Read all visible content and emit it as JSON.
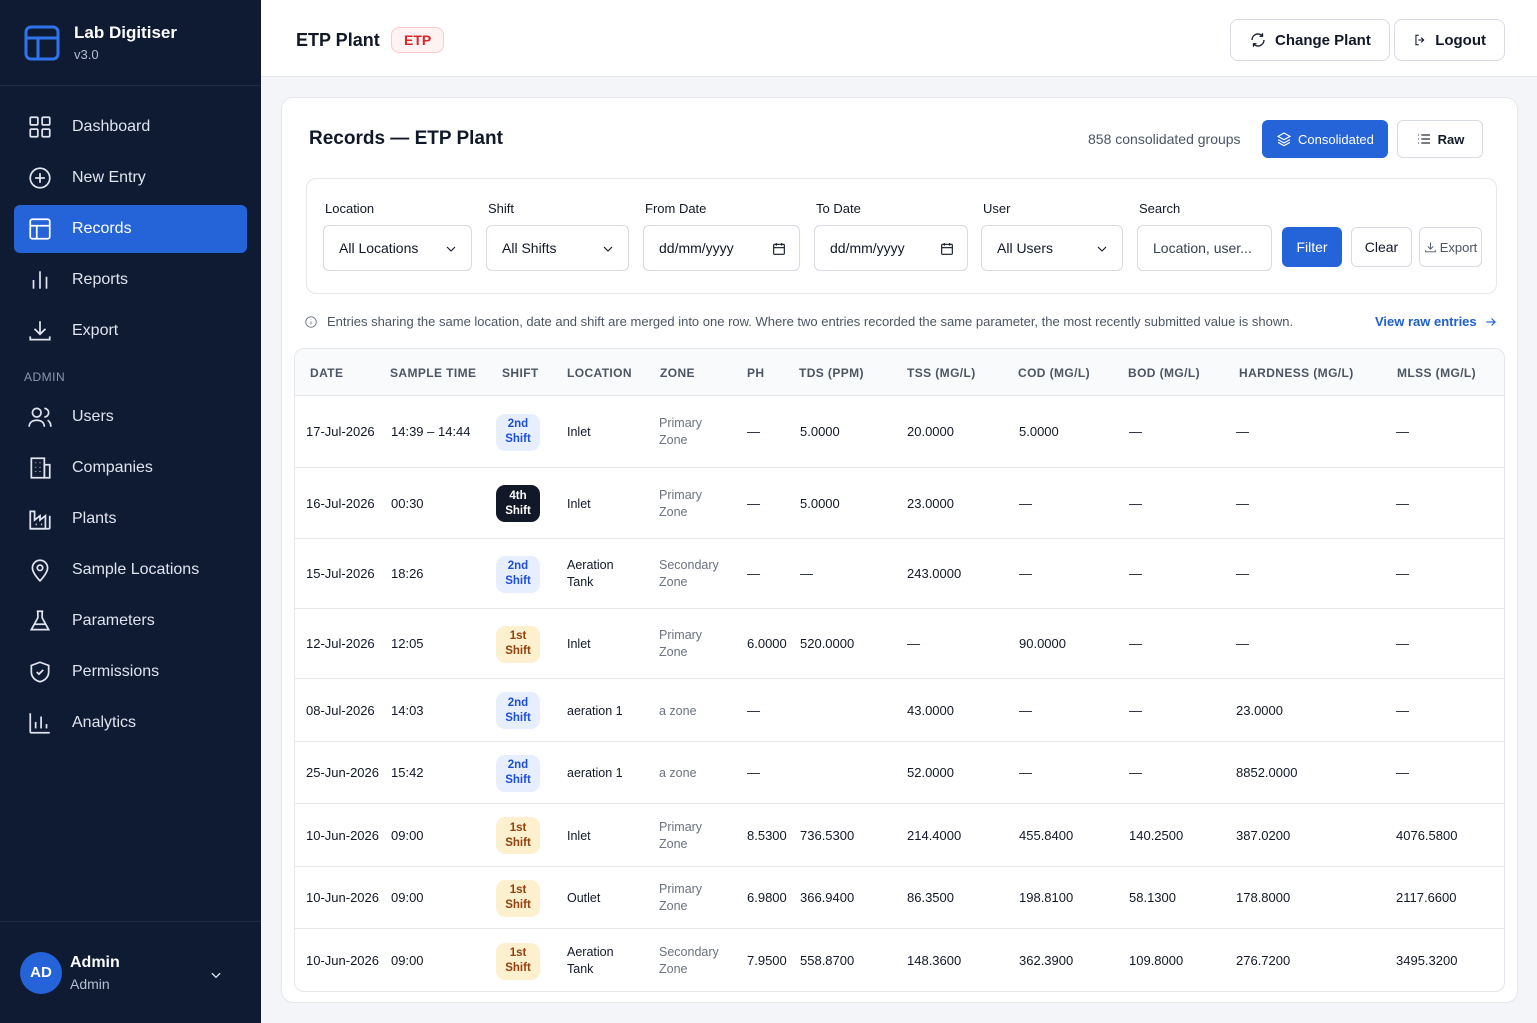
{
  "app": {
    "name": "Lab Digitiser",
    "version": "v3.0"
  },
  "nav": {
    "items": [
      {
        "label": "Dashboard",
        "icon": "dashboard-icon"
      },
      {
        "label": "New Entry",
        "icon": "plus-circle-icon"
      },
      {
        "label": "Records",
        "icon": "table-icon",
        "active": true
      },
      {
        "label": "Reports",
        "icon": "bar-chart-icon"
      },
      {
        "label": "Export",
        "icon": "download-icon"
      }
    ],
    "admin_label": "ADMIN",
    "admin_items": [
      {
        "label": "Users",
        "icon": "users-icon"
      },
      {
        "label": "Companies",
        "icon": "building-icon"
      },
      {
        "label": "Plants",
        "icon": "factory-icon"
      },
      {
        "label": "Sample Locations",
        "icon": "map-pin-icon"
      },
      {
        "label": "Parameters",
        "icon": "flask-icon"
      },
      {
        "label": "Permissions",
        "icon": "shield-icon"
      },
      {
        "label": "Analytics",
        "icon": "analytics-icon"
      }
    ]
  },
  "user": {
    "initials": "AD",
    "name": "Admin",
    "role": "Admin"
  },
  "header": {
    "title": "ETP Plant",
    "badge": "ETP",
    "change_plant": "Change Plant",
    "logout": "Logout"
  },
  "records": {
    "title": "Records — ETP Plant",
    "groups_count": "858 consolidated groups",
    "consolidated_label": "Consolidated",
    "raw_label": "Raw"
  },
  "filters": {
    "location": {
      "label": "Location",
      "value": "All Locations"
    },
    "shift": {
      "label": "Shift",
      "value": "All Shifts"
    },
    "from_date": {
      "label": "From Date",
      "value": "dd/mm/yyyy"
    },
    "to_date": {
      "label": "To Date",
      "value": "dd/mm/yyyy"
    },
    "user": {
      "label": "User",
      "value": "All Users"
    },
    "search": {
      "label": "Search",
      "placeholder": "Location, user..."
    },
    "filter_btn": "Filter",
    "clear_btn": "Clear",
    "export_btn": "Export"
  },
  "info_text": "Entries sharing the same location, date and shift are merged into one row. Where two entries recorded the same parameter, the most recently submitted value is shown.",
  "view_raw": "View raw entries",
  "table": {
    "columns": [
      "DATE",
      "SAMPLE TIME",
      "SHIFT",
      "LOCATION",
      "ZONE",
      "PH",
      "TDS (PPM)",
      "TSS (MG/L)",
      "COD (MG/L)",
      "BOD (MG/L)",
      "HARDNESS (MG/L)",
      "MLSS (MG/L)"
    ],
    "rows": [
      {
        "date": "17-Jul-2026",
        "time": "14:39 – 14:44",
        "shift": [
          "2nd",
          "Shift"
        ],
        "shift_kind": "s2",
        "location": [
          "Inlet",
          ""
        ],
        "zone": [
          "Primary",
          "Zone"
        ],
        "ph": "—",
        "tds": "5.0000",
        "tss": "20.0000",
        "cod": "5.0000",
        "bod": "—",
        "hardness": "—",
        "mlss": "—"
      },
      {
        "date": "16-Jul-2026",
        "time": "00:30",
        "shift": [
          "4th",
          "Shift"
        ],
        "shift_kind": "s4",
        "location": [
          "Inlet",
          ""
        ],
        "zone": [
          "Primary",
          "Zone"
        ],
        "ph": "—",
        "tds": "5.0000",
        "tss": "23.0000",
        "cod": "—",
        "bod": "—",
        "hardness": "—",
        "mlss": "—"
      },
      {
        "date": "15-Jul-2026",
        "time": "18:26",
        "shift": [
          "2nd",
          "Shift"
        ],
        "shift_kind": "s2",
        "location": [
          "Aeration",
          "Tank"
        ],
        "zone": [
          "Secondary",
          "Zone"
        ],
        "ph": "—",
        "tds": "—",
        "tss": "243.0000",
        "cod": "—",
        "bod": "—",
        "hardness": "—",
        "mlss": "—"
      },
      {
        "date": "12-Jul-2026",
        "time": "12:05",
        "shift": [
          "1st",
          "Shift"
        ],
        "shift_kind": "s1",
        "location": [
          "Inlet",
          ""
        ],
        "zone": [
          "Primary",
          "Zone"
        ],
        "ph": "6.0000",
        "tds": "520.0000",
        "tss": "—",
        "cod": "90.0000",
        "bod": "—",
        "hardness": "—",
        "mlss": "—"
      },
      {
        "date": "08-Jul-2026",
        "time": "14:03",
        "shift": [
          "2nd",
          "Shift"
        ],
        "shift_kind": "s2",
        "location": [
          "aeration 1",
          ""
        ],
        "zone": [
          "a zone",
          ""
        ],
        "ph": "—",
        "tds": "",
        "tss": "43.0000",
        "cod": "—",
        "bod": "—",
        "hardness": "23.0000",
        "mlss": "—"
      },
      {
        "date": "25-Jun-2026",
        "time": "15:42",
        "shift": [
          "2nd",
          "Shift"
        ],
        "shift_kind": "s2",
        "location": [
          "aeration 1",
          ""
        ],
        "zone": [
          "a zone",
          ""
        ],
        "ph": "—",
        "tds": "",
        "tss": "52.0000",
        "cod": "—",
        "bod": "—",
        "hardness": "8852.0000",
        "mlss": "—"
      },
      {
        "date": "10-Jun-2026",
        "time": "09:00",
        "shift": [
          "1st",
          "Shift"
        ],
        "shift_kind": "s1",
        "location": [
          "Inlet",
          ""
        ],
        "zone": [
          "Primary",
          "Zone"
        ],
        "ph": "8.5300",
        "tds": "736.5300",
        "tss": "214.4000",
        "cod": "455.8400",
        "bod": "140.2500",
        "hardness": "387.0200",
        "mlss": "4076.5800"
      },
      {
        "date": "10-Jun-2026",
        "time": "09:00",
        "shift": [
          "1st",
          "Shift"
        ],
        "shift_kind": "s1",
        "location": [
          "Outlet",
          ""
        ],
        "zone": [
          "Primary",
          "Zone"
        ],
        "ph": "6.9800",
        "tds": "366.9400",
        "tss": "86.3500",
        "cod": "198.8100",
        "bod": "58.1300",
        "hardness": "178.8000",
        "mlss": "2117.6600"
      },
      {
        "date": "10-Jun-2026",
        "time": "09:00",
        "shift": [
          "1st",
          "Shift"
        ],
        "shift_kind": "s1",
        "location": [
          "Aeration",
          "Tank"
        ],
        "zone": [
          "Secondary",
          "Zone"
        ],
        "ph": "7.9500",
        "tds": "558.8700",
        "tss": "148.3600",
        "cod": "362.3900",
        "bod": "109.8000",
        "hardness": "276.7200",
        "mlss": "3495.3200"
      }
    ]
  }
}
